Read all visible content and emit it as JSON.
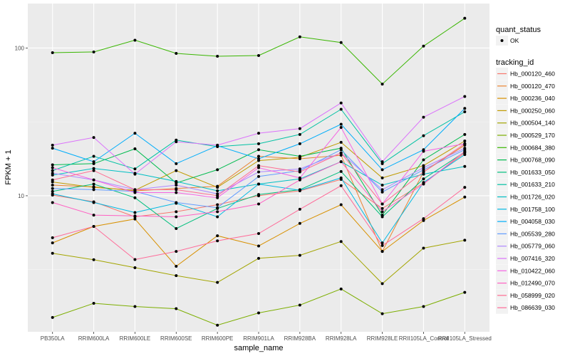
{
  "chart_data": {
    "type": "line",
    "title": "",
    "xlabel": "sample_name",
    "ylabel": "FPKM + 1",
    "yscale": "log10",
    "ylim": [
      1.2,
      200
    ],
    "yticks": [
      10,
      100
    ],
    "ytick_labels": [
      "10",
      "100"
    ],
    "grid": true,
    "categories": [
      "PB350LA",
      "RRIM600LA",
      "RRIM600LE",
      "RRIM600SE",
      "RRIM600PE",
      "RRIM901LA",
      "RRIM928BA",
      "RRIM928LA",
      "RRIM928LE",
      "RRII105LA_Control",
      "RRII105LA_Stressed"
    ],
    "legend_position": "right",
    "legend_shape": {
      "title": "quant_status",
      "entries": [
        "OK"
      ]
    },
    "legend_color_title": "tracking_id",
    "series": [
      {
        "name": "Hb_000120_460",
        "color": "#F8766D",
        "values": [
          10.1,
          9.1,
          7.2,
          7.8,
          8.7,
          10.0,
          10.8,
          12.9,
          8.2,
          12.2,
          19.5
        ]
      },
      {
        "name": "Hb_000120_470",
        "color": "#EA8331",
        "values": [
          11.8,
          11.5,
          10.8,
          11.2,
          11.6,
          18.5,
          17.8,
          18.8,
          4.2,
          14.5,
          22.0
        ]
      },
      {
        "name": "Hb_000236_040",
        "color": "#D89000",
        "values": [
          4.8,
          6.2,
          6.96,
          3.33,
          5.36,
          4.57,
          6.5,
          8.7,
          4.2,
          6.8,
          9.8
        ]
      },
      {
        "name": "Hb_000250_060",
        "color": "#C09B00",
        "values": [
          12.4,
          11.4,
          10.9,
          14.8,
          11.4,
          17.3,
          18.2,
          23.0,
          13.2,
          16.0,
          23.5
        ]
      },
      {
        "name": "Hb_000504_140",
        "color": "#A3A500",
        "values": [
          4.08,
          3.69,
          3.26,
          2.88,
          2.59,
          3.77,
          3.95,
          4.9,
          2.54,
          4.42,
          5.0
        ]
      },
      {
        "name": "Hb_000529_170",
        "color": "#7CAE00",
        "values": [
          1.5,
          1.87,
          1.78,
          1.72,
          1.33,
          1.61,
          1.82,
          2.34,
          1.59,
          1.78,
          2.22
        ]
      },
      {
        "name": "Hb_000684_380",
        "color": "#39B600",
        "values": [
          93,
          94,
          113,
          92,
          88,
          89,
          119,
          109,
          57,
          103,
          159
        ]
      },
      {
        "name": "Hb_000768_090",
        "color": "#00BB4E",
        "values": [
          16.2,
          16.5,
          20.8,
          12.2,
          15.0,
          20.5,
          18.5,
          21.0,
          7.4,
          17.5,
          26.0
        ]
      },
      {
        "name": "Hb_001633_050",
        "color": "#00BF7D",
        "values": [
          10.7,
          12.0,
          9.7,
          6.0,
          8.2,
          10.2,
          11.0,
          14.6,
          7.2,
          13.0,
          19.8
        ]
      },
      {
        "name": "Hb_001633_210",
        "color": "#00C1A3",
        "values": [
          14.8,
          18.5,
          15.2,
          23.8,
          21.5,
          22.5,
          26.0,
          38.5,
          16.5,
          25.5,
          37.0
        ]
      },
      {
        "name": "Hb_001726_020",
        "color": "#00BFC4",
        "values": [
          13.8,
          15.3,
          14.2,
          12.5,
          10.8,
          12.0,
          13.0,
          17.0,
          11.8,
          14.0,
          15.8
        ]
      },
      {
        "name": "Hb_001758_100",
        "color": "#00B9E3",
        "values": [
          10.3,
          9.0,
          7.7,
          8.9,
          7.2,
          12.0,
          10.9,
          13.2,
          4.8,
          12.3,
          19.0
        ]
      },
      {
        "name": "Hb_004058_030",
        "color": "#00ADFA",
        "values": [
          21.0,
          17.0,
          26.5,
          16.5,
          21.8,
          17.8,
          22.5,
          30.5,
          15.0,
          20.5,
          39.0
        ]
      },
      {
        "name": "Hb_005539_280",
        "color": "#619CFF",
        "values": [
          11.2,
          11.0,
          10.7,
          9.0,
          8.3,
          13.5,
          14.8,
          20.5,
          10.6,
          15.0,
          20.5
        ]
      },
      {
        "name": "Hb_005779_060",
        "color": "#AE87FF",
        "values": [
          14.2,
          12.8,
          11.0,
          11.8,
          10.3,
          14.5,
          15.2,
          19.5,
          11.0,
          15.5,
          21.0
        ]
      },
      {
        "name": "Hb_007416_320",
        "color": "#DB72FB",
        "values": [
          22.0,
          24.8,
          14.0,
          23.2,
          22.0,
          26.5,
          28.5,
          42.5,
          17.0,
          34.0,
          47.0
        ]
      },
      {
        "name": "Hb_010422_060",
        "color": "#F564E3",
        "values": [
          15.5,
          12.8,
          10.5,
          10.5,
          9.7,
          15.5,
          13.2,
          29.0,
          8.8,
          20.0,
          22.5
        ]
      },
      {
        "name": "Hb_012490_070",
        "color": "#FF61C3",
        "values": [
          9.0,
          7.4,
          7.3,
          7.2,
          7.8,
          8.8,
          12.8,
          17.0,
          7.8,
          12.0,
          20.0
        ]
      },
      {
        "name": "Hb_058999_020",
        "color": "#FF6C91",
        "values": [
          12.8,
          14.8,
          11.0,
          11.0,
          10.0,
          16.0,
          14.5,
          19.5,
          8.8,
          14.5,
          22.5
        ]
      },
      {
        "name": "Hb_086639_030",
        "color": "#FF6A98",
        "values": [
          5.2,
          6.2,
          3.7,
          4.2,
          4.95,
          5.55,
          8.1,
          11.7,
          4.6,
          7.0,
          11.4
        ]
      }
    ]
  }
}
